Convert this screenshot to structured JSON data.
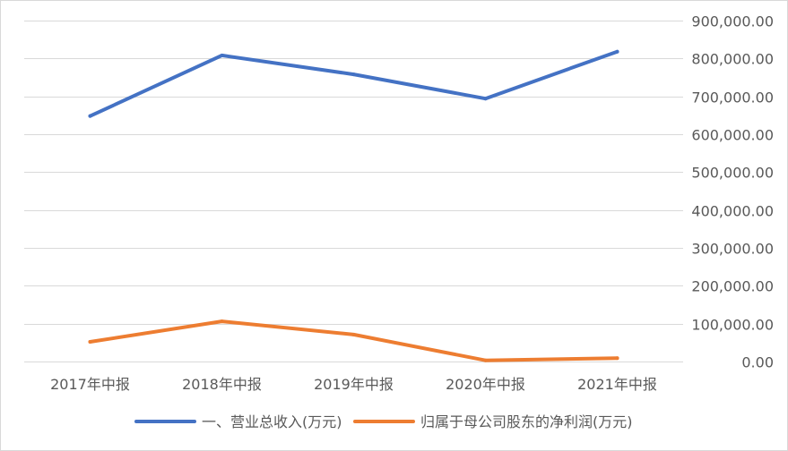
{
  "chart_data": {
    "type": "line",
    "categories": [
      "2017年中报",
      "2018年中报",
      "2019年中报",
      "2020年中报",
      "2021年中报"
    ],
    "series": [
      {
        "name": "一、营业总收入(万元)",
        "color": "#4472c4",
        "values": [
          648000,
          808000,
          758000,
          694000,
          818000
        ]
      },
      {
        "name": "归属于母公司股东的净利润(万元)",
        "color": "#ed7d31",
        "values": [
          52000,
          106000,
          71000,
          3000,
          9000
        ]
      }
    ],
    "y_axis": {
      "position": "right",
      "ylim": [
        0,
        900000
      ],
      "ticks": [
        "0.00",
        "100,000.00",
        "200,000.00",
        "300,000.00",
        "400,000.00",
        "500,000.00",
        "600,000.00",
        "700,000.00",
        "800,000.00",
        "900,000.00"
      ]
    },
    "grid": true,
    "legend_position": "bottom"
  }
}
